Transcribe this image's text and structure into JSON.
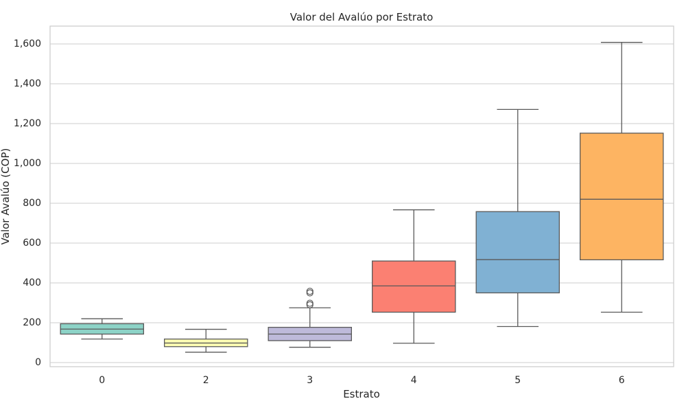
{
  "chart_data": {
    "type": "box",
    "title": "Valor del Avalúo por Estrato",
    "xlabel": "Estrato",
    "ylabel": "Valor Avalúo (COP)",
    "ylim": [
      -20,
      1690
    ],
    "yticks": [
      0,
      200,
      400,
      600,
      800,
      1000,
      1200,
      1400,
      1600
    ],
    "ytick_labels": [
      "0",
      "200",
      "400",
      "600",
      "800",
      "1,000",
      "1,200",
      "1,400",
      "1,600"
    ],
    "grid": true,
    "categories": [
      "0",
      "2",
      "3",
      "4",
      "5",
      "6"
    ],
    "boxes": [
      {
        "category": "0",
        "whisker_low": 118,
        "q1": 143,
        "median": 168,
        "q3": 195,
        "whisker_high": 220,
        "outliers": [],
        "color": "#8dd3c7"
      },
      {
        "category": "2",
        "whisker_low": 52,
        "q1": 80,
        "median": 98,
        "q3": 118,
        "whisker_high": 167,
        "outliers": [],
        "color": "#ffffb3"
      },
      {
        "category": "3",
        "whisker_low": 77,
        "q1": 110,
        "median": 143,
        "q3": 177,
        "whisker_high": 275,
        "outliers": [
          290,
          298,
          350,
          358
        ],
        "color": "#bebada"
      },
      {
        "category": "4",
        "whisker_low": 97,
        "q1": 253,
        "median": 385,
        "q3": 510,
        "whisker_high": 767,
        "outliers": [],
        "color": "#fb8072"
      },
      {
        "category": "5",
        "whisker_low": 181,
        "q1": 350,
        "median": 517,
        "q3": 758,
        "whisker_high": 1271,
        "outliers": [],
        "color": "#80b1d3"
      },
      {
        "category": "6",
        "whisker_low": 253,
        "q1": 516,
        "median": 820,
        "q3": 1152,
        "whisker_high": 1608,
        "outliers": [],
        "color": "#fdb462"
      }
    ]
  }
}
